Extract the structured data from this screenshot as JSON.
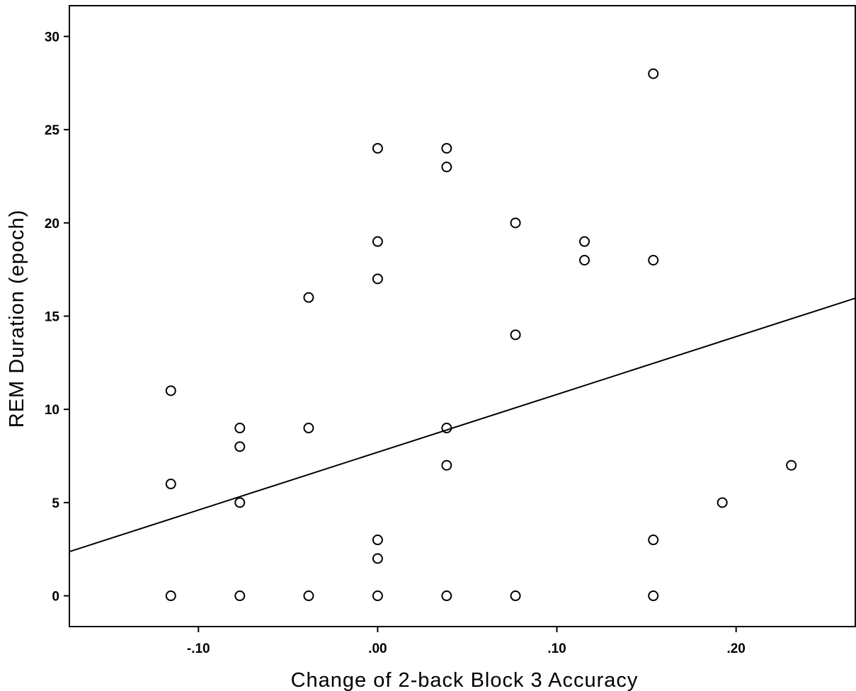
{
  "chart_data": {
    "type": "scatter",
    "title": "",
    "xlabel": "Change of 2-back Block 3 Accuracy",
    "ylabel": "REM Duration (epoch)",
    "xlim": [
      -0.172,
      0.2665
    ],
    "ylim": [
      -1.65,
      31.65
    ],
    "x_ticks": [
      {
        "value": -0.1,
        "label": "-.10"
      },
      {
        "value": 0.0,
        "label": ".00"
      },
      {
        "value": 0.1,
        "label": ".10"
      },
      {
        "value": 0.2,
        "label": ".20"
      }
    ],
    "y_ticks": [
      {
        "value": 0,
        "label": "0"
      },
      {
        "value": 5,
        "label": "5"
      },
      {
        "value": 10,
        "label": "10"
      },
      {
        "value": 15,
        "label": "15"
      },
      {
        "value": 20,
        "label": "20"
      },
      {
        "value": 25,
        "label": "25"
      },
      {
        "value": 30,
        "label": "30"
      }
    ],
    "grid": false,
    "marker": "open-circle",
    "points": [
      {
        "x": -0.1154,
        "y": 11
      },
      {
        "x": -0.1154,
        "y": 6
      },
      {
        "x": -0.1154,
        "y": 0
      },
      {
        "x": -0.0769,
        "y": 9
      },
      {
        "x": -0.0769,
        "y": 8
      },
      {
        "x": -0.0769,
        "y": 5
      },
      {
        "x": -0.0769,
        "y": 0
      },
      {
        "x": -0.0385,
        "y": 16
      },
      {
        "x": -0.0385,
        "y": 9
      },
      {
        "x": -0.0385,
        "y": 0
      },
      {
        "x": 0.0,
        "y": 24
      },
      {
        "x": 0.0,
        "y": 19
      },
      {
        "x": 0.0,
        "y": 17
      },
      {
        "x": 0.0,
        "y": 3
      },
      {
        "x": 0.0,
        "y": 2
      },
      {
        "x": 0.0,
        "y": 0
      },
      {
        "x": 0.0385,
        "y": 24
      },
      {
        "x": 0.0385,
        "y": 23
      },
      {
        "x": 0.0385,
        "y": 9
      },
      {
        "x": 0.0385,
        "y": 7
      },
      {
        "x": 0.0385,
        "y": 0
      },
      {
        "x": 0.0769,
        "y": 20
      },
      {
        "x": 0.0769,
        "y": 14
      },
      {
        "x": 0.0769,
        "y": 0
      },
      {
        "x": 0.1154,
        "y": 19
      },
      {
        "x": 0.1154,
        "y": 18
      },
      {
        "x": 0.1538,
        "y": 28
      },
      {
        "x": 0.1538,
        "y": 18
      },
      {
        "x": 0.1538,
        "y": 3
      },
      {
        "x": 0.1538,
        "y": 0
      },
      {
        "x": 0.1923,
        "y": 5
      },
      {
        "x": 0.2308,
        "y": 7
      }
    ],
    "fit_line": {
      "type": "linear",
      "intercept": 7.7,
      "slope": 31.0
    }
  }
}
